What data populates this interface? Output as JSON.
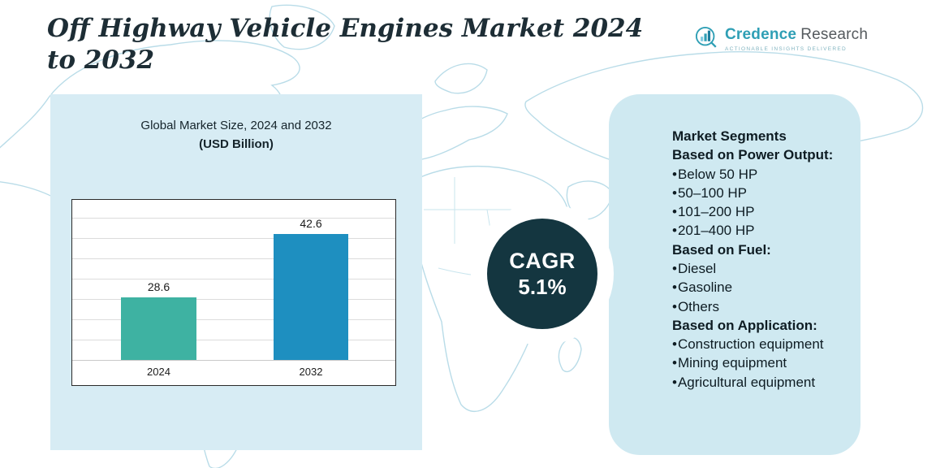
{
  "page": {
    "title": "Off Highway Vehicle Engines Market 2024 to 2032"
  },
  "logo": {
    "brand_primary": "Credence",
    "brand_secondary": "Research",
    "tagline": "Actionable Insights Delivered"
  },
  "chart_data": {
    "type": "bar",
    "title": "Global Market Size, 2024 and 2032",
    "subtitle": "(USD Billion)",
    "categories": [
      "2024",
      "2032"
    ],
    "values": [
      28.6,
      42.6
    ],
    "value_labels": [
      "28.6",
      "42.6"
    ],
    "bar_colors": [
      "#3eb2a2",
      "#1e8fc0"
    ],
    "ylim": [
      15,
      50
    ],
    "grid": true,
    "legend": false
  },
  "cagr": {
    "label": "CAGR",
    "value": "5.1%"
  },
  "segments": {
    "title": "Market Segments",
    "groups": [
      {
        "heading": "Based on Power Output:",
        "items": [
          "Below 50 HP",
          "50–100 HP",
          "101–200 HP",
          "201–400 HP"
        ]
      },
      {
        "heading": "Based on Fuel:",
        "items": [
          "Diesel",
          "Gasoline",
          "Others"
        ]
      },
      {
        "heading": "Based on Application:",
        "items": [
          "Construction equipment",
          "Mining equipment",
          "Agricultural equipment"
        ]
      }
    ]
  },
  "colors": {
    "bar_2024": "#3eb2a2",
    "bar_2032": "#1e8fc0",
    "panel_blue": "#d7ecf4",
    "cagr_circle": "#143640",
    "title_text": "#1d2d35"
  }
}
